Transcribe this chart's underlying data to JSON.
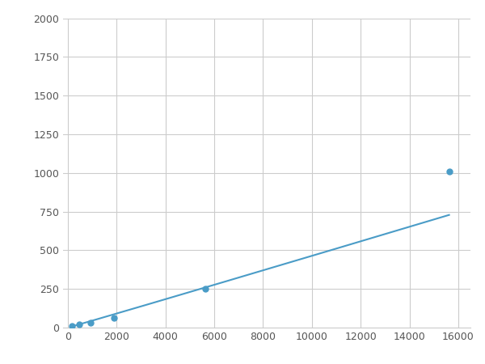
{
  "x": [
    156,
    469,
    938,
    1875,
    5625,
    15625
  ],
  "y": [
    10,
    20,
    32,
    62,
    250,
    1007
  ],
  "line_color": "#4a9cc7",
  "marker_color": "#4a9cc7",
  "marker_size": 5,
  "xlim": [
    -200,
    16500
  ],
  "ylim": [
    0,
    2000
  ],
  "xticks": [
    0,
    2000,
    4000,
    6000,
    8000,
    10000,
    12000,
    14000,
    16000
  ],
  "yticks": [
    0,
    250,
    500,
    750,
    1000,
    1250,
    1500,
    1750,
    2000
  ],
  "grid_color": "#cccccc",
  "bg_color": "#ffffff",
  "fig_bg_color": "#ffffff",
  "tick_fontsize": 9,
  "tick_color": "#555555"
}
